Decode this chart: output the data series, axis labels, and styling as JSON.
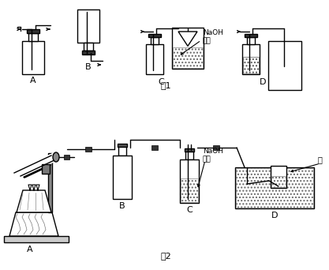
{
  "bg_color": "#ffffff",
  "line_color": "#000000",
  "fig1_label": "图1",
  "fig2_label": "图2",
  "naoh_label": "NaOH\n溶液",
  "water_label": "水"
}
